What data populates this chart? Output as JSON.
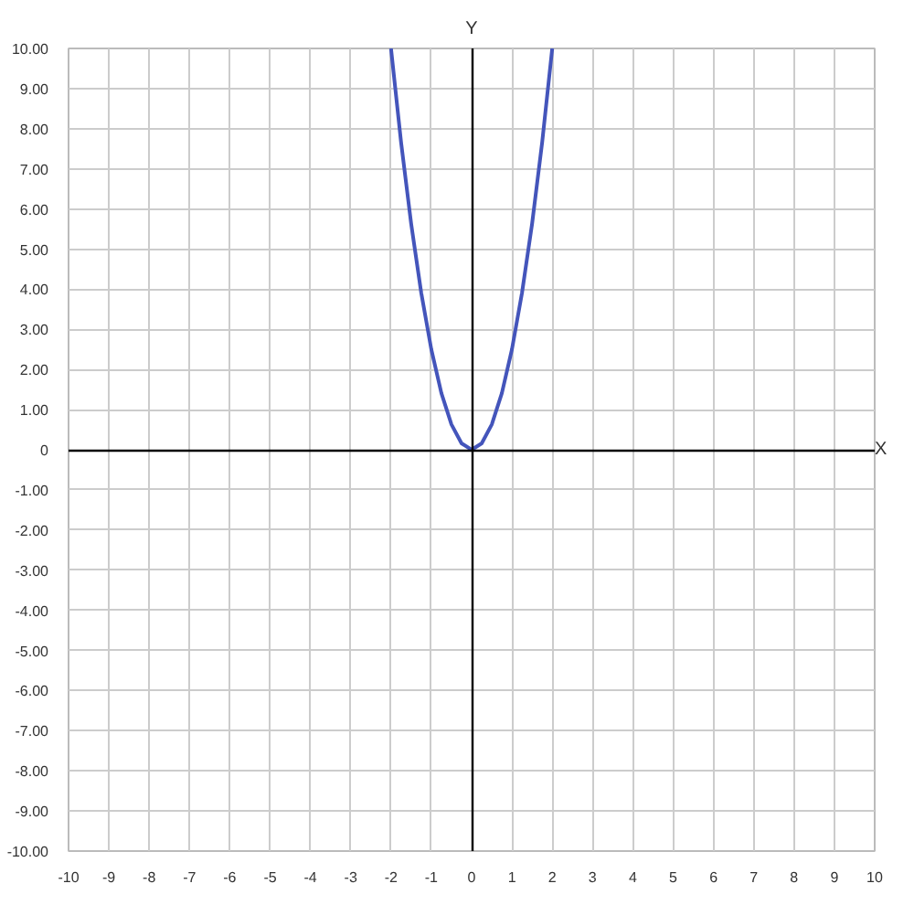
{
  "chart_data": {
    "type": "line",
    "xlabel": "X",
    "ylabel": "Y",
    "x": [
      -2,
      -1.75,
      -1.5,
      -1.25,
      -1,
      -0.75,
      -0.5,
      -0.25,
      0,
      0.25,
      0.5,
      0.75,
      1,
      1.25,
      1.5,
      1.75,
      2
    ],
    "series": [
      {
        "color": "#4455bb",
        "values": [
          10,
          7.66,
          5.63,
          3.91,
          2.5,
          1.41,
          0.63,
          0.16,
          0,
          0.16,
          0.63,
          1.41,
          2.5,
          3.91,
          5.63,
          7.66,
          10
        ]
      }
    ],
    "xlim": [
      -10,
      10
    ],
    "ylim": [
      -10,
      10
    ],
    "xticks": [
      -10,
      -9,
      -8,
      -7,
      -6,
      -5,
      -4,
      -3,
      -2,
      -1,
      0,
      1,
      2,
      3,
      4,
      5,
      6,
      7,
      8,
      9,
      10
    ],
    "yticks": [
      {
        "value": -10,
        "label": "-10.00"
      },
      {
        "value": -9,
        "label": "-9.00"
      },
      {
        "value": -8,
        "label": "-8.00"
      },
      {
        "value": -7,
        "label": "-7.00"
      },
      {
        "value": -6,
        "label": "-6.00"
      },
      {
        "value": -5,
        "label": "-5.00"
      },
      {
        "value": -4,
        "label": "-4.00"
      },
      {
        "value": -3,
        "label": "-3.00"
      },
      {
        "value": -2,
        "label": "-2.00"
      },
      {
        "value": -1,
        "label": "-1.00"
      },
      0,
      {
        "value": 1,
        "label": "1.00"
      },
      {
        "value": 2,
        "label": "2.00"
      },
      {
        "value": 3,
        "label": "3.00"
      },
      {
        "value": 4,
        "label": "4.00"
      },
      {
        "value": 5,
        "label": "5.00"
      },
      {
        "value": 6,
        "label": "6.00"
      },
      {
        "value": 7,
        "label": "7.00"
      },
      {
        "value": 8,
        "label": "8.00"
      },
      {
        "value": 9,
        "label": "9.00"
      },
      {
        "value": 10,
        "label": "10.00"
      }
    ],
    "grid": true,
    "marker": "none",
    "line_style": "solid"
  }
}
